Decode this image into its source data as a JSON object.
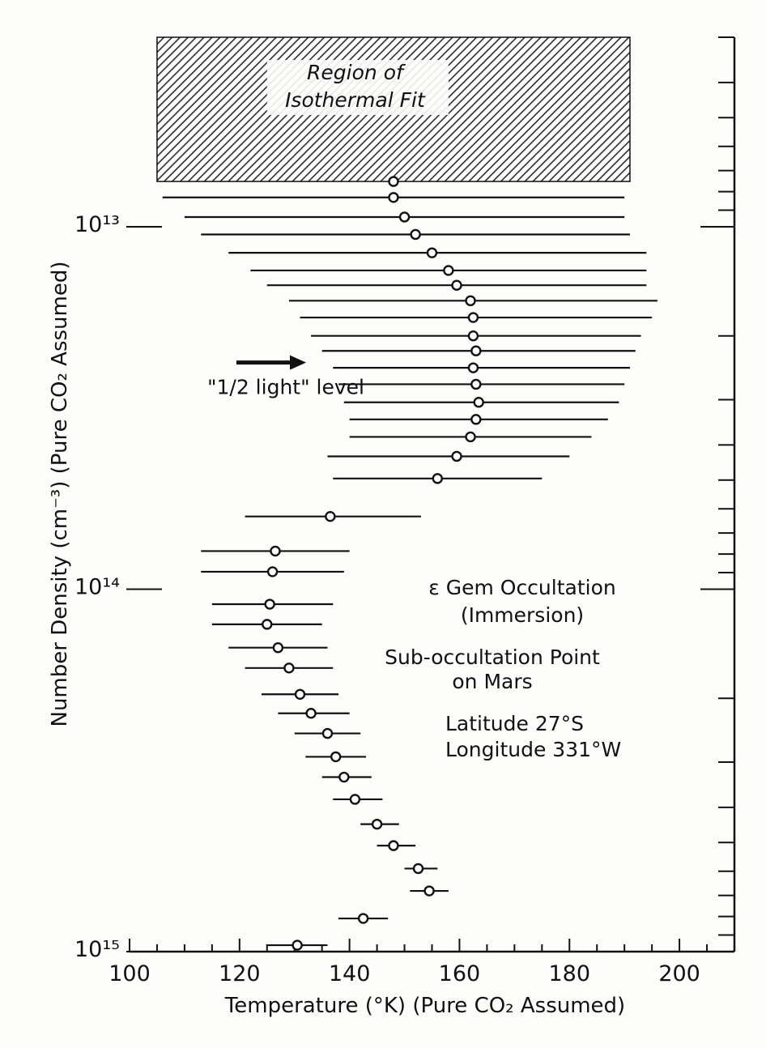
{
  "chart_data": {
    "type": "scatter",
    "xlabel": "Temperature (°K) (Pure CO₂ Assumed)",
    "ylabel": "Number Density (cm⁻³) (Pure CO₂ Assumed)",
    "x_ticks": [
      "100",
      "120",
      "140",
      "160",
      "180",
      "200"
    ],
    "xlim": [
      100,
      210
    ],
    "y_scale": "log",
    "y_direction": "inverted",
    "ylim": [
      3000000000000.0,
      1000000000000000.0
    ],
    "y_ticks": [
      "10¹³",
      "10¹⁴",
      "10¹⁵"
    ],
    "y_tick_values": [
      10000000000000.0,
      100000000000000.0,
      1000000000000000.0
    ],
    "shaded_region": {
      "label_line1": "Region of",
      "label_line2": "Isothermal Fit",
      "x_range": [
        105,
        191
      ],
      "y_range": [
        3000000000000.0,
        7500000000000.0
      ]
    },
    "annotations": {
      "half_light": "\"1/2 light\" level",
      "half_light_density": 27500000000000.0,
      "occultation_title": "ε Gem Occultation",
      "occultation_sub": "(Immersion)",
      "sub_point_1": "Sub-occultation Point",
      "sub_point_2": "on Mars",
      "latitude": "Latitude  27°S",
      "longitude": "Longitude 331°W"
    },
    "series": [
      {
        "points": [
          {
            "density": 7500000000000.0,
            "t": 148.0,
            "lo": null,
            "hi": null
          },
          {
            "density": 8300000000000.0,
            "t": 148.0,
            "lo": 106,
            "hi": 190
          },
          {
            "density": 9400000000000.0,
            "t": 150.0,
            "lo": 110,
            "hi": 190
          },
          {
            "density": 10500000000000.0,
            "t": 152.0,
            "lo": 113,
            "hi": 191
          },
          {
            "density": 11800000000000.0,
            "t": 155.0,
            "lo": 118,
            "hi": 194
          },
          {
            "density": 13200000000000.0,
            "t": 158.0,
            "lo": 122,
            "hi": 194
          },
          {
            "density": 14500000000000.0,
            "t": 159.5,
            "lo": 125,
            "hi": 194
          },
          {
            "density": 16000000000000.0,
            "t": 162.0,
            "lo": 129,
            "hi": 196
          },
          {
            "density": 17800000000000.0,
            "t": 162.5,
            "lo": 131,
            "hi": 195
          },
          {
            "density": 20000000000000.0,
            "t": 162.5,
            "lo": 133,
            "hi": 193
          },
          {
            "density": 22000000000000.0,
            "t": 163.0,
            "lo": 135,
            "hi": 192
          },
          {
            "density": 24500000000000.0,
            "t": 162.5,
            "lo": 137,
            "hi": 191
          },
          {
            "density": 27200000000000.0,
            "t": 163.0,
            "lo": 138,
            "hi": 190
          },
          {
            "density": 30500000000000.0,
            "t": 163.5,
            "lo": 139,
            "hi": 189
          },
          {
            "density": 34000000000000.0,
            "t": 163.0,
            "lo": 140,
            "hi": 187
          },
          {
            "density": 38000000000000.0,
            "t": 162.0,
            "lo": 140,
            "hi": 184
          },
          {
            "density": 43000000000000.0,
            "t": 159.5,
            "lo": 136,
            "hi": 180
          },
          {
            "density": 49500000000000.0,
            "t": 156.0,
            "lo": 137,
            "hi": 175
          },
          {
            "density": 63000000000000.0,
            "t": 136.5,
            "lo": 121,
            "hi": 153
          },
          {
            "density": 78500000000000.0,
            "t": 126.5,
            "lo": 113,
            "hi": 140
          },
          {
            "density": 89500000000000.0,
            "t": 126.0,
            "lo": 113,
            "hi": 139
          },
          {
            "density": 110000000000000.0,
            "t": 125.5,
            "lo": 115,
            "hi": 137
          },
          {
            "density": 125000000000000.0,
            "t": 125.0,
            "lo": 115,
            "hi": 135
          },
          {
            "density": 145000000000000.0,
            "t": 127.0,
            "lo": 118,
            "hi": 136
          },
          {
            "density": 165000000000000.0,
            "t": 129.0,
            "lo": 121,
            "hi": 137
          },
          {
            "density": 195000000000000.0,
            "t": 131.0,
            "lo": 124,
            "hi": 138
          },
          {
            "density": 220000000000000.0,
            "t": 133.0,
            "lo": 127,
            "hi": 140
          },
          {
            "density": 250000000000000.0,
            "t": 136.0,
            "lo": 130,
            "hi": 142
          },
          {
            "density": 290000000000000.0,
            "t": 137.5,
            "lo": 132,
            "hi": 143
          },
          {
            "density": 330000000000000.0,
            "t": 139.0,
            "lo": 135,
            "hi": 144
          },
          {
            "density": 380000000000000.0,
            "t": 141.0,
            "lo": 137,
            "hi": 146
          },
          {
            "density": 445000000000000.0,
            "t": 145.0,
            "lo": 142,
            "hi": 149
          },
          {
            "density": 510000000000000.0,
            "t": 148.0,
            "lo": 145,
            "hi": 152
          },
          {
            "density": 590000000000000.0,
            "t": 152.5,
            "lo": 150,
            "hi": 156
          },
          {
            "density": 680000000000000.0,
            "t": 154.5,
            "lo": 151,
            "hi": 158
          },
          {
            "density": 810000000000000.0,
            "t": 142.5,
            "lo": 138,
            "hi": 147
          },
          {
            "density": 960000000000000.0,
            "t": 130.5,
            "lo": 125,
            "hi": 136
          }
        ]
      }
    ]
  }
}
